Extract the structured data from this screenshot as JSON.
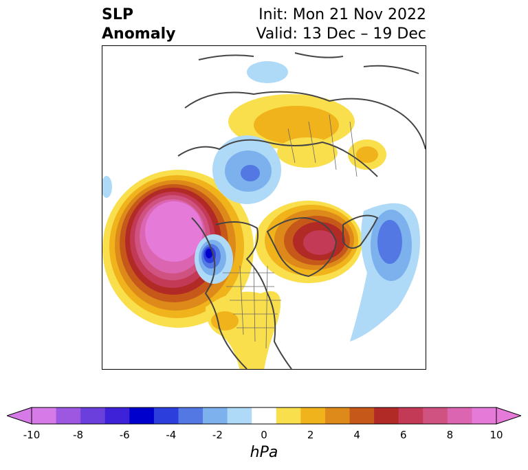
{
  "title": {
    "line1": "SLP",
    "line2": "Anomaly"
  },
  "subtitle": {
    "line1": "Init: Mon 21 Nov 2022",
    "line2": "Valid: 13 Dec – 19 Dec"
  },
  "colorbar": {
    "unit": "hPa",
    "ticks": [
      "-10",
      "-8",
      "-6",
      "-4",
      "-2",
      "0",
      "2",
      "4",
      "6",
      "8",
      "10"
    ],
    "colors": [
      "#d57ae6",
      "#9d57e0",
      "#6b3fdc",
      "#3d22d8",
      "#0000cc",
      "#2c3fdc",
      "#5478e3",
      "#7cb1ee",
      "#aedaf8",
      "#ffffff",
      "#fadf4d",
      "#f0b31c",
      "#dd8a1b",
      "#c6591a",
      "#b22a26",
      "#c33a56",
      "#cf5281",
      "#db65b1",
      "#e57ad9"
    ],
    "over_color": "#e57ad9",
    "under_color": "#d57ae6"
  }
}
